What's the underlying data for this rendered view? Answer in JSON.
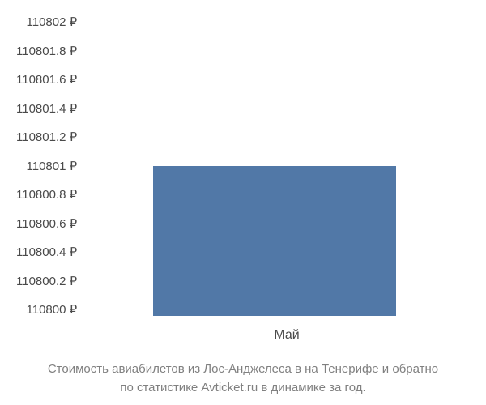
{
  "chart": {
    "type": "bar",
    "ylim": [
      110800,
      110802
    ],
    "ytick_step": 0.2,
    "y_ticks": [
      "110802 ₽",
      "110801.8 ₽",
      "110801.6 ₽",
      "110801.4 ₽",
      "110801.2 ₽",
      "110801 ₽",
      "110800.8 ₽",
      "110800.6 ₽",
      "110800.4 ₽",
      "110800.2 ₽",
      "110800 ₽"
    ],
    "categories": [
      "Май"
    ],
    "values": [
      110801
    ],
    "bar_color": "#5178a7",
    "bar_width_pct": 63,
    "bar_left_pct": 18,
    "background_color": "#ffffff",
    "axis_text_color": "#4a4a4a",
    "axis_fontsize": 15,
    "caption_color": "#808080",
    "caption_fontsize": 15
  },
  "caption": {
    "line1": "Стоимость авиабилетов из Лос-Анджелеса в на Тенерифе и обратно",
    "line2": "по статистике Avticket.ru в динамике за год."
  }
}
